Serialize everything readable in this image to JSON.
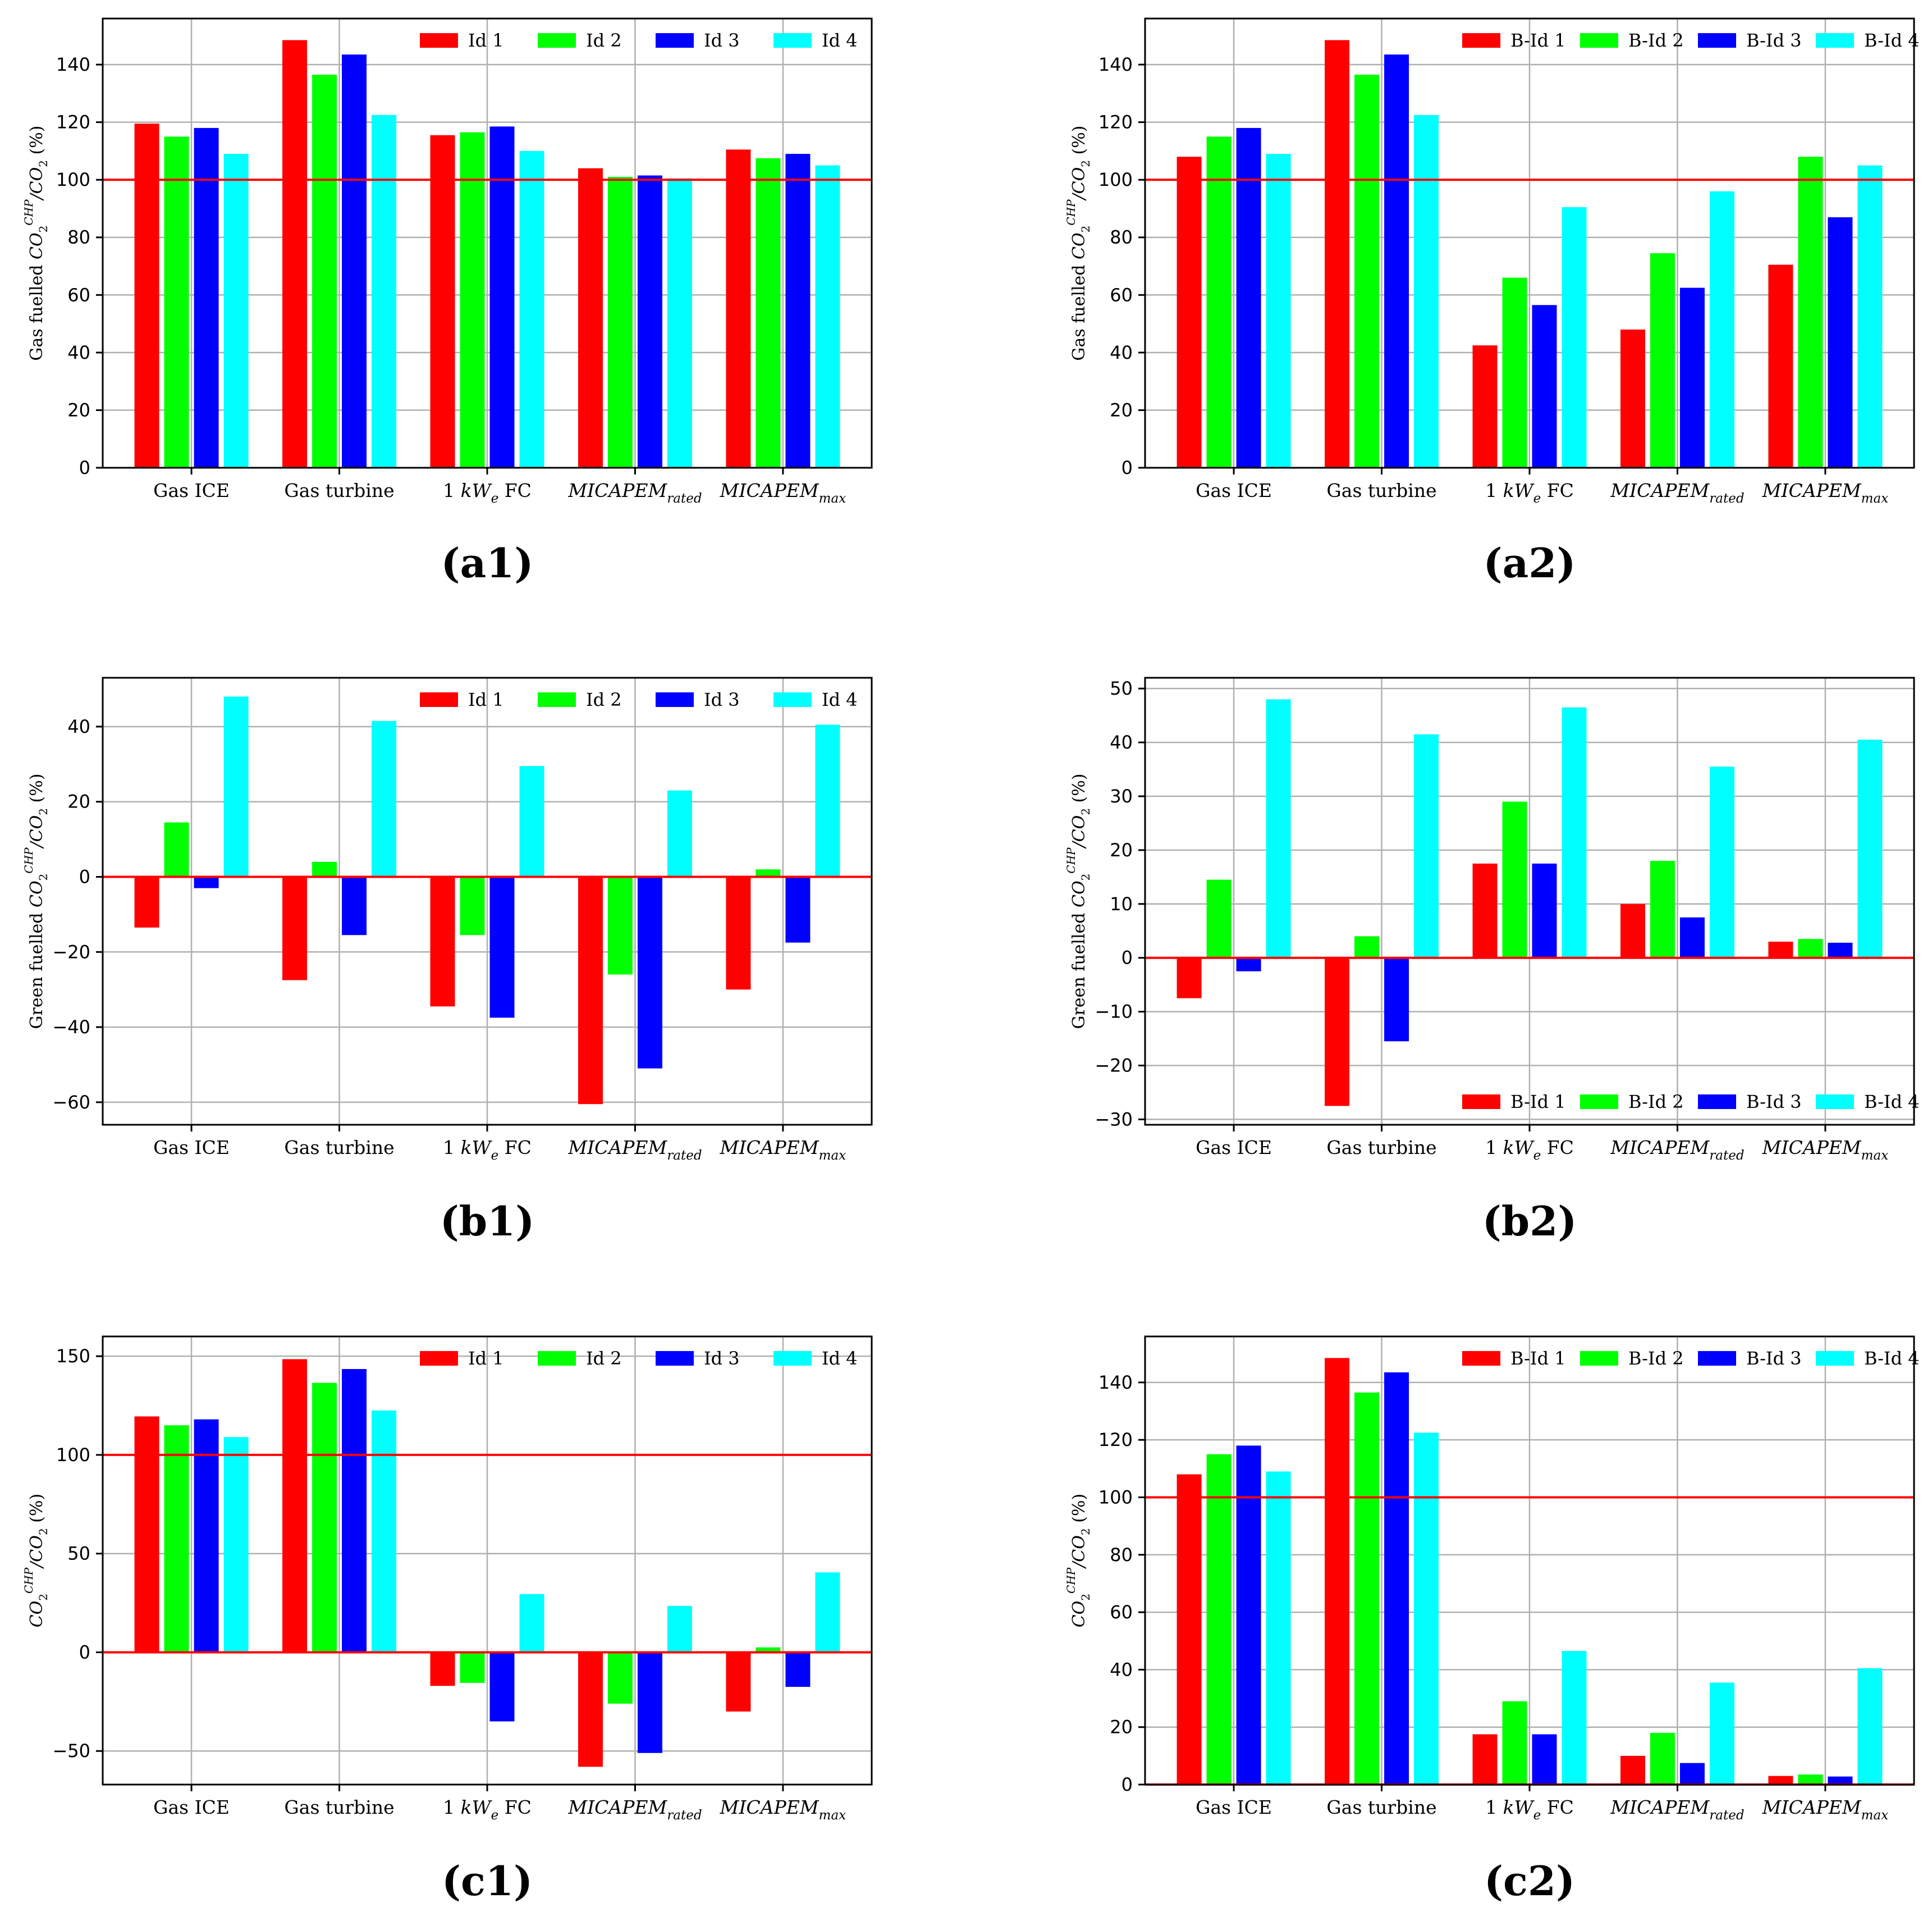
{
  "colors": {
    "series": [
      "#ff0000",
      "#00ff00",
      "#0000ff",
      "#00ffff"
    ],
    "ref_line": "#ff0000",
    "grid": "#b0b0b0",
    "axis": "#000000"
  },
  "chart_data": [
    {
      "panel": "(a1)",
      "type": "bar",
      "ylabel_prefix": "Gas fuelled ",
      "categories": [
        "Gas ICE",
        "Gas turbine",
        "1 kWe FC",
        "MICAPEMrated",
        "MICAPEMmax"
      ],
      "series": [
        {
          "name": "Id 1",
          "values": [
            119.5,
            148.5,
            115.5,
            104,
            110.5
          ]
        },
        {
          "name": "Id 2",
          "values": [
            115,
            136.5,
            116.5,
            101,
            107.5
          ]
        },
        {
          "name": "Id 3",
          "values": [
            118,
            143.5,
            118.5,
            101.5,
            109
          ]
        },
        {
          "name": "Id 4",
          "values": [
            109,
            122.5,
            110,
            100.5,
            105
          ]
        }
      ],
      "yticks": [
        0,
        20,
        40,
        60,
        80,
        100,
        120,
        140
      ],
      "ylim": [
        0,
        156
      ],
      "ref_line": 100,
      "legend": "top-right",
      "grid": true
    },
    {
      "panel": "(a2)",
      "type": "bar",
      "ylabel_prefix": "Gas fuelled ",
      "categories": [
        "Gas ICE",
        "Gas turbine",
        "1 kWe FC",
        "MICAPEMrated",
        "MICAPEMmax"
      ],
      "series": [
        {
          "name": "B-Id 1",
          "values": [
            108,
            148.5,
            42.5,
            48,
            70.5
          ]
        },
        {
          "name": "B-Id 2",
          "values": [
            115,
            136.5,
            66,
            74.5,
            108
          ]
        },
        {
          "name": "B-Id 3",
          "values": [
            118,
            143.5,
            56.5,
            62.5,
            87
          ]
        },
        {
          "name": "B-Id 4",
          "values": [
            109,
            122.5,
            90.5,
            96,
            105
          ]
        }
      ],
      "yticks": [
        0,
        20,
        40,
        60,
        80,
        100,
        120,
        140
      ],
      "ylim": [
        0,
        156
      ],
      "ref_line": 100,
      "legend": "top-right",
      "grid": true
    },
    {
      "panel": "(b1)",
      "type": "bar",
      "ylabel_prefix": "Green fuelled ",
      "categories": [
        "Gas ICE",
        "Gas turbine",
        "1 kWe FC",
        "MICAPEMrated",
        "MICAPEMmax"
      ],
      "series": [
        {
          "name": "Id 1",
          "values": [
            -13.5,
            -27.5,
            -34.5,
            -60.5,
            -30
          ]
        },
        {
          "name": "Id 2",
          "values": [
            14.5,
            4,
            -15.5,
            -26,
            2
          ]
        },
        {
          "name": "Id 3",
          "values": [
            -3,
            -15.5,
            -37.5,
            -51,
            -17.5
          ]
        },
        {
          "name": "Id 4",
          "values": [
            48,
            41.5,
            29.5,
            23,
            40.5
          ]
        }
      ],
      "yticks": [
        -60,
        -40,
        -20,
        0,
        20,
        40
      ],
      "ylim": [
        -66,
        53
      ],
      "ref_line": 0,
      "legend": "top-right",
      "grid": true
    },
    {
      "panel": "(b2)",
      "type": "bar",
      "ylabel_prefix": "Green fuelled ",
      "categories": [
        "Gas ICE",
        "Gas turbine",
        "1 kWe FC",
        "MICAPEMrated",
        "MICAPEMmax"
      ],
      "series": [
        {
          "name": "B-Id 1",
          "values": [
            -7.5,
            -27.5,
            17.5,
            10,
            3
          ]
        },
        {
          "name": "B-Id 2",
          "values": [
            14.5,
            4,
            29,
            18,
            3.5
          ]
        },
        {
          "name": "B-Id 3",
          "values": [
            -2.5,
            -15.5,
            17.5,
            7.5,
            2.8
          ]
        },
        {
          "name": "B-Id 4",
          "values": [
            48,
            41.5,
            46.5,
            35.5,
            40.5
          ]
        }
      ],
      "yticks": [
        -30,
        -20,
        -10,
        0,
        10,
        20,
        30,
        40,
        50
      ],
      "ylim": [
        -31,
        52
      ],
      "ref_line": 0,
      "legend": "bottom-right",
      "grid": true
    },
    {
      "panel": "(c1)",
      "type": "bar",
      "ylabel_prefix": "",
      "categories": [
        "Gas ICE",
        "Gas turbine",
        "1 kWe FC",
        "MICAPEMrated",
        "MICAPEMmax"
      ],
      "series": [
        {
          "name": "Id 1",
          "values": [
            119.5,
            148.5,
            -17,
            -58,
            -30
          ]
        },
        {
          "name": "Id 2",
          "values": [
            115,
            136.5,
            -15.5,
            -26,
            2.5
          ]
        },
        {
          "name": "Id 3",
          "values": [
            118,
            143.5,
            -35,
            -51,
            -17.5
          ]
        },
        {
          "name": "Id 4",
          "values": [
            109,
            122.5,
            29.5,
            23.5,
            40.5
          ]
        }
      ],
      "yticks": [
        -50,
        0,
        50,
        100,
        150
      ],
      "ylim": [
        -67,
        160
      ],
      "ref_line": [
        0,
        100
      ],
      "legend": "top-right",
      "grid": true
    },
    {
      "panel": "(c2)",
      "type": "bar",
      "ylabel_prefix": "",
      "categories": [
        "Gas ICE",
        "Gas turbine",
        "1 kWe FC",
        "MICAPEMrated",
        "MICAPEMmax"
      ],
      "series": [
        {
          "name": "B-Id 1",
          "values": [
            108,
            148.5,
            17.5,
            10,
            3
          ]
        },
        {
          "name": "B-Id 2",
          "values": [
            115,
            136.5,
            29,
            18,
            3.5
          ]
        },
        {
          "name": "B-Id 3",
          "values": [
            118,
            143.5,
            17.5,
            7.5,
            2.8
          ]
        },
        {
          "name": "B-Id 4",
          "values": [
            109,
            122.5,
            46.5,
            35.5,
            40.5
          ]
        }
      ],
      "yticks": [
        0,
        20,
        40,
        60,
        80,
        100,
        120,
        140
      ],
      "ylim": [
        0,
        156
      ],
      "ref_line": [
        0,
        100
      ],
      "legend": "top-right",
      "grid": true
    }
  ]
}
